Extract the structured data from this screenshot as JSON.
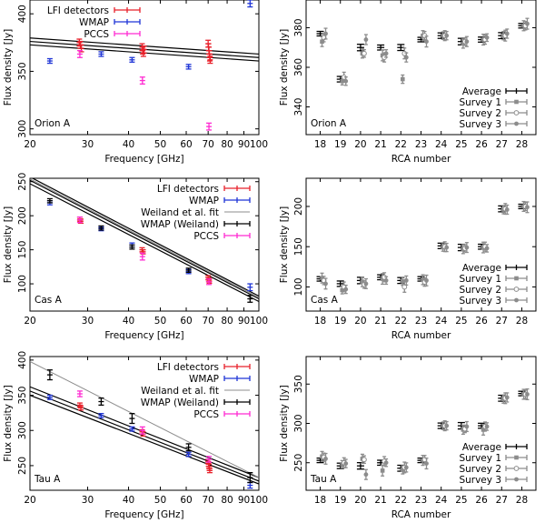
{
  "chart_data": [
    {
      "type": "scatter",
      "xscale": "log",
      "xlabel": "Frequency [GHz]",
      "ylabel": "Flux density [Jy]",
      "panel_label": "Orion A",
      "xlim": [
        20,
        100
      ],
      "ylim": [
        295,
        412
      ],
      "xticks": [
        20,
        30,
        40,
        50,
        60,
        70,
        80,
        90,
        100
      ],
      "xtick_labels": [
        "20",
        "30",
        "40",
        "50",
        "60",
        "70",
        "80",
        "90",
        "100"
      ],
      "yticks": [
        300,
        350,
        400
      ],
      "legend": {
        "position": "top-left",
        "entries": [
          "LFI detectors",
          "WMAP",
          "PCCS"
        ]
      },
      "colors": {
        "LFI detectors": "#e8212b",
        "WMAP": "#1f35d6",
        "PCCS": "#ff2bd2",
        "fit": "#000000"
      },
      "fit_lines": [
        {
          "name": "upper",
          "x": [
            20,
            100
          ],
          "y": [
            379,
            365
          ]
        },
        {
          "name": "center",
          "x": [
            20,
            100
          ],
          "y": [
            376,
            362
          ]
        },
        {
          "name": "lower",
          "x": [
            20,
            100
          ],
          "y": [
            373,
            359
          ]
        }
      ],
      "series": [
        {
          "name": "LFI detectors",
          "points": [
            {
              "x": 28.3,
              "y": 375,
              "err": 3
            },
            {
              "x": 28.5,
              "y": 373,
              "err": 3
            },
            {
              "x": 28.7,
              "y": 370,
              "err": 3
            },
            {
              "x": 44.0,
              "y": 371,
              "err": 3
            },
            {
              "x": 44.2,
              "y": 368,
              "err": 3
            },
            {
              "x": 44.4,
              "y": 366,
              "err": 3
            },
            {
              "x": 44.6,
              "y": 369,
              "err": 3
            },
            {
              "x": 70.0,
              "y": 374,
              "err": 3
            },
            {
              "x": 70.2,
              "y": 371,
              "err": 3
            },
            {
              "x": 70.4,
              "y": 368,
              "err": 3
            },
            {
              "x": 70.6,
              "y": 365,
              "err": 3
            },
            {
              "x": 70.8,
              "y": 362,
              "err": 3
            },
            {
              "x": 71.0,
              "y": 360,
              "err": 3
            }
          ]
        },
        {
          "name": "WMAP",
          "points": [
            {
              "x": 23,
              "y": 359,
              "err": 2
            },
            {
              "x": 33,
              "y": 365,
              "err": 2
            },
            {
              "x": 41,
              "y": 360,
              "err": 2
            },
            {
              "x": 61,
              "y": 354,
              "err": 2
            },
            {
              "x": 94,
              "y": 409,
              "err": 3
            }
          ]
        },
        {
          "name": "PCCS",
          "points": [
            {
              "x": 28.4,
              "y": 365,
              "err": 3
            },
            {
              "x": 44.1,
              "y": 342,
              "err": 3
            },
            {
              "x": 70.4,
              "y": 302,
              "err": 3
            }
          ]
        }
      ]
    },
    {
      "type": "scatter",
      "xlabel": "RCA number",
      "ylabel": "Flux density [Jy]",
      "panel_label": "Orion A",
      "xlim": [
        17.3,
        28.7
      ],
      "ylim": [
        326,
        394
      ],
      "xticks": [
        18,
        19,
        20,
        21,
        22,
        23,
        24,
        25,
        26,
        27,
        28
      ],
      "xtick_labels": [
        "18",
        "19",
        "20",
        "21",
        "22",
        "23",
        "24",
        "25",
        "26",
        "27",
        "28"
      ],
      "yticks": [
        340,
        360,
        380
      ],
      "legend": {
        "position": "bottom-right",
        "entries": [
          "Average",
          "Survey 1",
          "Survey 2",
          "Survey 3"
        ]
      },
      "colors": {
        "Average": "#000000",
        "surveys": "#8c8c8c"
      },
      "series": [
        {
          "name": "Average",
          "values": [
            377,
            354,
            370,
            370,
            370,
            374,
            376,
            373,
            374,
            376,
            381
          ]
        },
        {
          "name": "Survey 1",
          "values": [
            373,
            353,
            367,
            366,
            354,
            376,
            376,
            372,
            374,
            376,
            381
          ]
        },
        {
          "name": "Survey 2",
          "values": [
            375,
            355,
            367,
            365,
            367,
            376,
            376,
            373,
            374,
            376,
            381
          ]
        },
        {
          "name": "Survey 3",
          "values": [
            377,
            353,
            374,
            367,
            365,
            373,
            376,
            373,
            375,
            377,
            382
          ]
        }
      ]
    },
    {
      "type": "scatter",
      "xscale": "log",
      "xlabel": "Frequency [GHz]",
      "ylabel": "Flux density [Jy]",
      "panel_label": "Cas A",
      "xlim": [
        20,
        100
      ],
      "ylim": [
        60,
        255
      ],
      "xticks": [
        20,
        30,
        40,
        50,
        60,
        70,
        80,
        90,
        100
      ],
      "xtick_labels": [
        "20",
        "30",
        "40",
        "50",
        "60",
        "70",
        "80",
        "90",
        "100"
      ],
      "yticks": [
        100,
        150,
        200,
        250
      ],
      "legend": {
        "position": "top-right",
        "entries": [
          "LFI detectors",
          "WMAP",
          "Weiland et al. fit",
          "WMAP (Weiland)",
          "PCCS"
        ]
      },
      "colors": {
        "LFI detectors": "#e8212b",
        "WMAP": "#1f35d6",
        "Weiland et al. fit": "#8c8c8c",
        "WMAP (Weiland)": "#000000",
        "PCCS": "#ff2bd2",
        "fit": "#000000"
      },
      "fit_lines": [
        {
          "name": "upper",
          "x": [
            20,
            100
          ],
          "y": [
            257,
            82
          ]
        },
        {
          "name": "center",
          "x": [
            20,
            100
          ],
          "y": [
            252,
            78
          ]
        },
        {
          "name": "lower",
          "x": [
            20,
            100
          ],
          "y": [
            247,
            74
          ]
        },
        {
          "name": "Weiland et al. fit",
          "x": [
            20,
            100
          ],
          "y": [
            254,
            80
          ]
        }
      ],
      "series": [
        {
          "name": "LFI detectors",
          "points": [
            {
              "x": 28.4,
              "y": 195,
              "err": 3
            },
            {
              "x": 28.6,
              "y": 192,
              "err": 3
            },
            {
              "x": 44.0,
              "y": 150,
              "err": 3
            },
            {
              "x": 44.3,
              "y": 147,
              "err": 3
            },
            {
              "x": 70.0,
              "y": 109,
              "err": 3
            },
            {
              "x": 70.3,
              "y": 106,
              "err": 3
            },
            {
              "x": 70.6,
              "y": 104,
              "err": 3
            }
          ]
        },
        {
          "name": "WMAP",
          "points": [
            {
              "x": 23,
              "y": 219,
              "err": 3
            },
            {
              "x": 33,
              "y": 181,
              "err": 3
            },
            {
              "x": 41,
              "y": 157,
              "err": 3
            },
            {
              "x": 61,
              "y": 118,
              "err": 3
            },
            {
              "x": 94,
              "y": 95,
              "err": 5
            }
          ]
        },
        {
          "name": "WMAP (Weiland)",
          "points": [
            {
              "x": 23,
              "y": 222,
              "err": 3
            },
            {
              "x": 33,
              "y": 182,
              "err": 3
            },
            {
              "x": 41,
              "y": 154,
              "err": 3
            },
            {
              "x": 61,
              "y": 120,
              "err": 3
            },
            {
              "x": 94,
              "y": 78,
              "err": 5
            }
          ]
        },
        {
          "name": "PCCS",
          "points": [
            {
              "x": 28.4,
              "y": 194,
              "err": 4
            },
            {
              "x": 44.1,
              "y": 140,
              "err": 5
            },
            {
              "x": 70.4,
              "y": 103,
              "err": 4
            }
          ]
        }
      ]
    },
    {
      "type": "scatter",
      "xlabel": "RCA number",
      "ylabel": "Flux density [Jy]",
      "panel_label": "Cas A",
      "xlim": [
        17.3,
        28.7
      ],
      "ylim": [
        70,
        235
      ],
      "xticks": [
        18,
        19,
        20,
        21,
        22,
        23,
        24,
        25,
        26,
        27,
        28
      ],
      "xtick_labels": [
        "18",
        "19",
        "20",
        "21",
        "22",
        "23",
        "24",
        "25",
        "26",
        "27",
        "28"
      ],
      "yticks": [
        100,
        150,
        200
      ],
      "legend": {
        "position": "bottom-right",
        "entries": [
          "Average",
          "Survey 1",
          "Survey 2",
          "Survey 3"
        ]
      },
      "colors": {
        "Average": "#000000",
        "surveys": "#8c8c8c"
      },
      "series": [
        {
          "name": "Average",
          "values": [
            110,
            104,
            108,
            112,
            108,
            110,
            151,
            149,
            150,
            197,
            200
          ]
        },
        {
          "name": "Survey 1",
          "values": [
            111,
            96,
            106,
            110,
            107,
            109,
            149,
            147,
            149,
            196,
            200
          ]
        },
        {
          "name": "Survey 2",
          "values": [
            108,
            100,
            103,
            112,
            100,
            106,
            150,
            148,
            150,
            197,
            200
          ]
        },
        {
          "name": "Survey 3",
          "values": [
            104,
            97,
            104,
            108,
            108,
            108,
            149,
            149,
            148,
            196,
            199
          ]
        }
      ]
    },
    {
      "type": "scatter",
      "xscale": "log",
      "xlabel": "Frequency [GHz]",
      "ylabel": "Flux density [Jy]",
      "panel_label": "Tau A",
      "xlim": [
        20,
        100
      ],
      "ylim": [
        215,
        405
      ],
      "xticks": [
        20,
        30,
        40,
        50,
        60,
        70,
        80,
        90,
        100
      ],
      "xtick_labels": [
        "20",
        "30",
        "40",
        "50",
        "60",
        "70",
        "80",
        "90",
        "100"
      ],
      "yticks": [
        250,
        300,
        350,
        400
      ],
      "legend": {
        "position": "top-right",
        "entries": [
          "LFI detectors",
          "WMAP",
          "Weiland et al. fit",
          "WMAP (Weiland)",
          "PCCS"
        ]
      },
      "colors": {
        "LFI detectors": "#e8212b",
        "WMAP": "#1f35d6",
        "Weiland et al. fit": "#8c8c8c",
        "WMAP (Weiland)": "#000000",
        "PCCS": "#ff2bd2",
        "fit": "#000000"
      },
      "fit_lines": [
        {
          "name": "upper",
          "x": [
            20,
            100
          ],
          "y": [
            362,
            233
          ]
        },
        {
          "name": "center",
          "x": [
            20,
            100
          ],
          "y": [
            356,
            228
          ]
        },
        {
          "name": "lower",
          "x": [
            20,
            100
          ],
          "y": [
            350,
            224
          ]
        },
        {
          "name": "Weiland et al. fit",
          "x": [
            20,
            100
          ],
          "y": [
            398,
            233
          ]
        }
      ],
      "series": [
        {
          "name": "LFI detectors",
          "points": [
            {
              "x": 28.4,
              "y": 336,
              "err": 3
            },
            {
              "x": 28.6,
              "y": 332,
              "err": 3
            },
            {
              "x": 44.0,
              "y": 298,
              "err": 3
            },
            {
              "x": 44.3,
              "y": 295,
              "err": 3
            },
            {
              "x": 70.0,
              "y": 256,
              "err": 3
            },
            {
              "x": 70.2,
              "y": 252,
              "err": 3
            },
            {
              "x": 70.4,
              "y": 249,
              "err": 3
            },
            {
              "x": 70.6,
              "y": 246,
              "err": 3
            },
            {
              "x": 70.8,
              "y": 243,
              "err": 3
            }
          ]
        },
        {
          "name": "WMAP",
          "points": [
            {
              "x": 23,
              "y": 347,
              "err": 3
            },
            {
              "x": 33,
              "y": 321,
              "err": 3
            },
            {
              "x": 41,
              "y": 302,
              "err": 3
            },
            {
              "x": 61,
              "y": 266,
              "err": 3
            },
            {
              "x": 94,
              "y": 222,
              "err": 4
            }
          ]
        },
        {
          "name": "WMAP (Weiland)",
          "points": [
            {
              "x": 23,
              "y": 379,
              "err": 7
            },
            {
              "x": 33,
              "y": 341,
              "err": 5
            },
            {
              "x": 41,
              "y": 317,
              "err": 7
            },
            {
              "x": 61,
              "y": 276,
              "err": 5
            },
            {
              "x": 94,
              "y": 233,
              "err": 7
            }
          ]
        },
        {
          "name": "PCCS",
          "points": [
            {
              "x": 28.4,
              "y": 352,
              "err": 4
            },
            {
              "x": 44.1,
              "y": 300,
              "err": 5
            },
            {
              "x": 70.4,
              "y": 259,
              "err": 4
            }
          ]
        }
      ]
    },
    {
      "type": "scatter",
      "xlabel": "RCA number",
      "ylabel": "Flux density [Jy]",
      "panel_label": "Tau A",
      "xlim": [
        17.3,
        28.7
      ],
      "ylim": [
        215,
        385
      ],
      "xticks": [
        18,
        19,
        20,
        21,
        22,
        23,
        24,
        25,
        26,
        27,
        28
      ],
      "xtick_labels": [
        "18",
        "19",
        "20",
        "21",
        "22",
        "23",
        "24",
        "25",
        "26",
        "27",
        "28"
      ],
      "yticks": [
        250,
        300,
        350
      ],
      "legend": {
        "position": "bottom-right",
        "entries": [
          "Average",
          "Survey 1",
          "Survey 2",
          "Survey 3"
        ]
      },
      "colors": {
        "Average": "#000000",
        "surveys": "#8c8c8c"
      },
      "series": [
        {
          "name": "Average",
          "values": [
            253,
            246,
            246,
            250,
            243,
            253,
            297,
            297,
            297,
            332,
            338
          ]
        },
        {
          "name": "Survey 1",
          "values": [
            258,
            248,
            255,
            240,
            241,
            253,
            297,
            292,
            292,
            331,
            337
          ]
        },
        {
          "name": "Survey 2",
          "values": [
            257,
            250,
            254,
            252,
            244,
            254,
            297,
            293,
            296,
            332,
            337
          ]
        },
        {
          "name": "Survey 3",
          "values": [
            255,
            249,
            235,
            250,
            244,
            249,
            297,
            296,
            296,
            333,
            337
          ]
        }
      ]
    }
  ]
}
